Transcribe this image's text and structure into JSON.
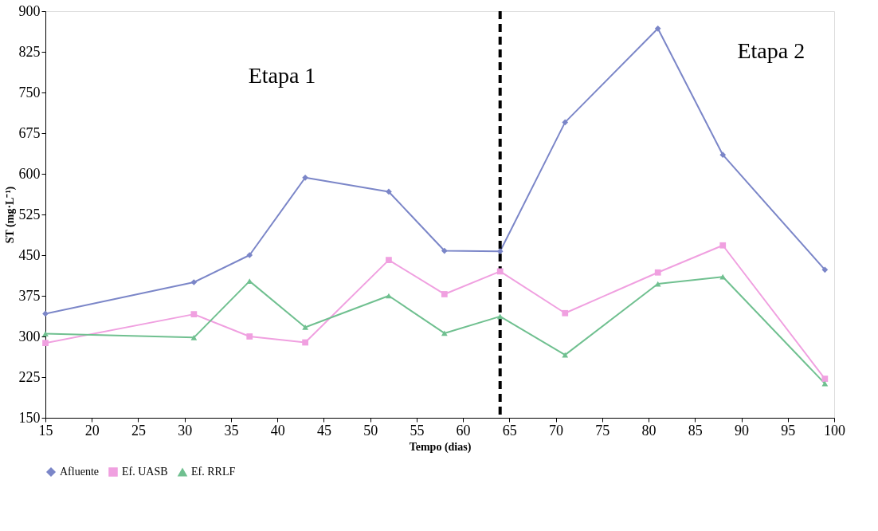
{
  "chart_data": {
    "type": "line",
    "xlabel": "Tempo (dias)",
    "ylabel": "ST (mg·L⁻¹)",
    "x": [
      15,
      31,
      37,
      43,
      52,
      58,
      64,
      71,
      81,
      88,
      99
    ],
    "series": [
      {
        "name": "Afluente",
        "color": "#7b86c8",
        "marker": "diamond",
        "values": [
          342,
          400,
          450,
          593,
          567,
          458,
          457,
          695,
          868,
          635,
          423
        ]
      },
      {
        "name": "Ef. UASB",
        "color": "#f0a0e0",
        "marker": "square",
        "values": [
          288,
          341,
          300,
          289,
          441,
          378,
          420,
          343,
          418,
          468,
          222
        ]
      },
      {
        "name": "Ef. RRLF",
        "color": "#70c090",
        "marker": "triangle",
        "values": [
          305,
          298,
          402,
          317,
          375,
          306,
          337,
          266,
          397,
          410,
          213
        ]
      }
    ],
    "xlim": [
      15,
      100
    ],
    "xticks": [
      15,
      20,
      25,
      30,
      35,
      40,
      45,
      50,
      55,
      60,
      65,
      70,
      75,
      80,
      85,
      90,
      95,
      100
    ],
    "ylim": [
      150,
      900
    ],
    "yticks": [
      150,
      225,
      300,
      375,
      450,
      525,
      600,
      675,
      750,
      825,
      900
    ],
    "ref_lines": [
      {
        "axis": "x",
        "value": 64,
        "color": "#000000",
        "line_style": "dashed"
      }
    ],
    "annotations": [
      "Etapa 1",
      "Etapa 2"
    ],
    "grid": false,
    "legend": "bottom",
    "line_style": "solid"
  }
}
